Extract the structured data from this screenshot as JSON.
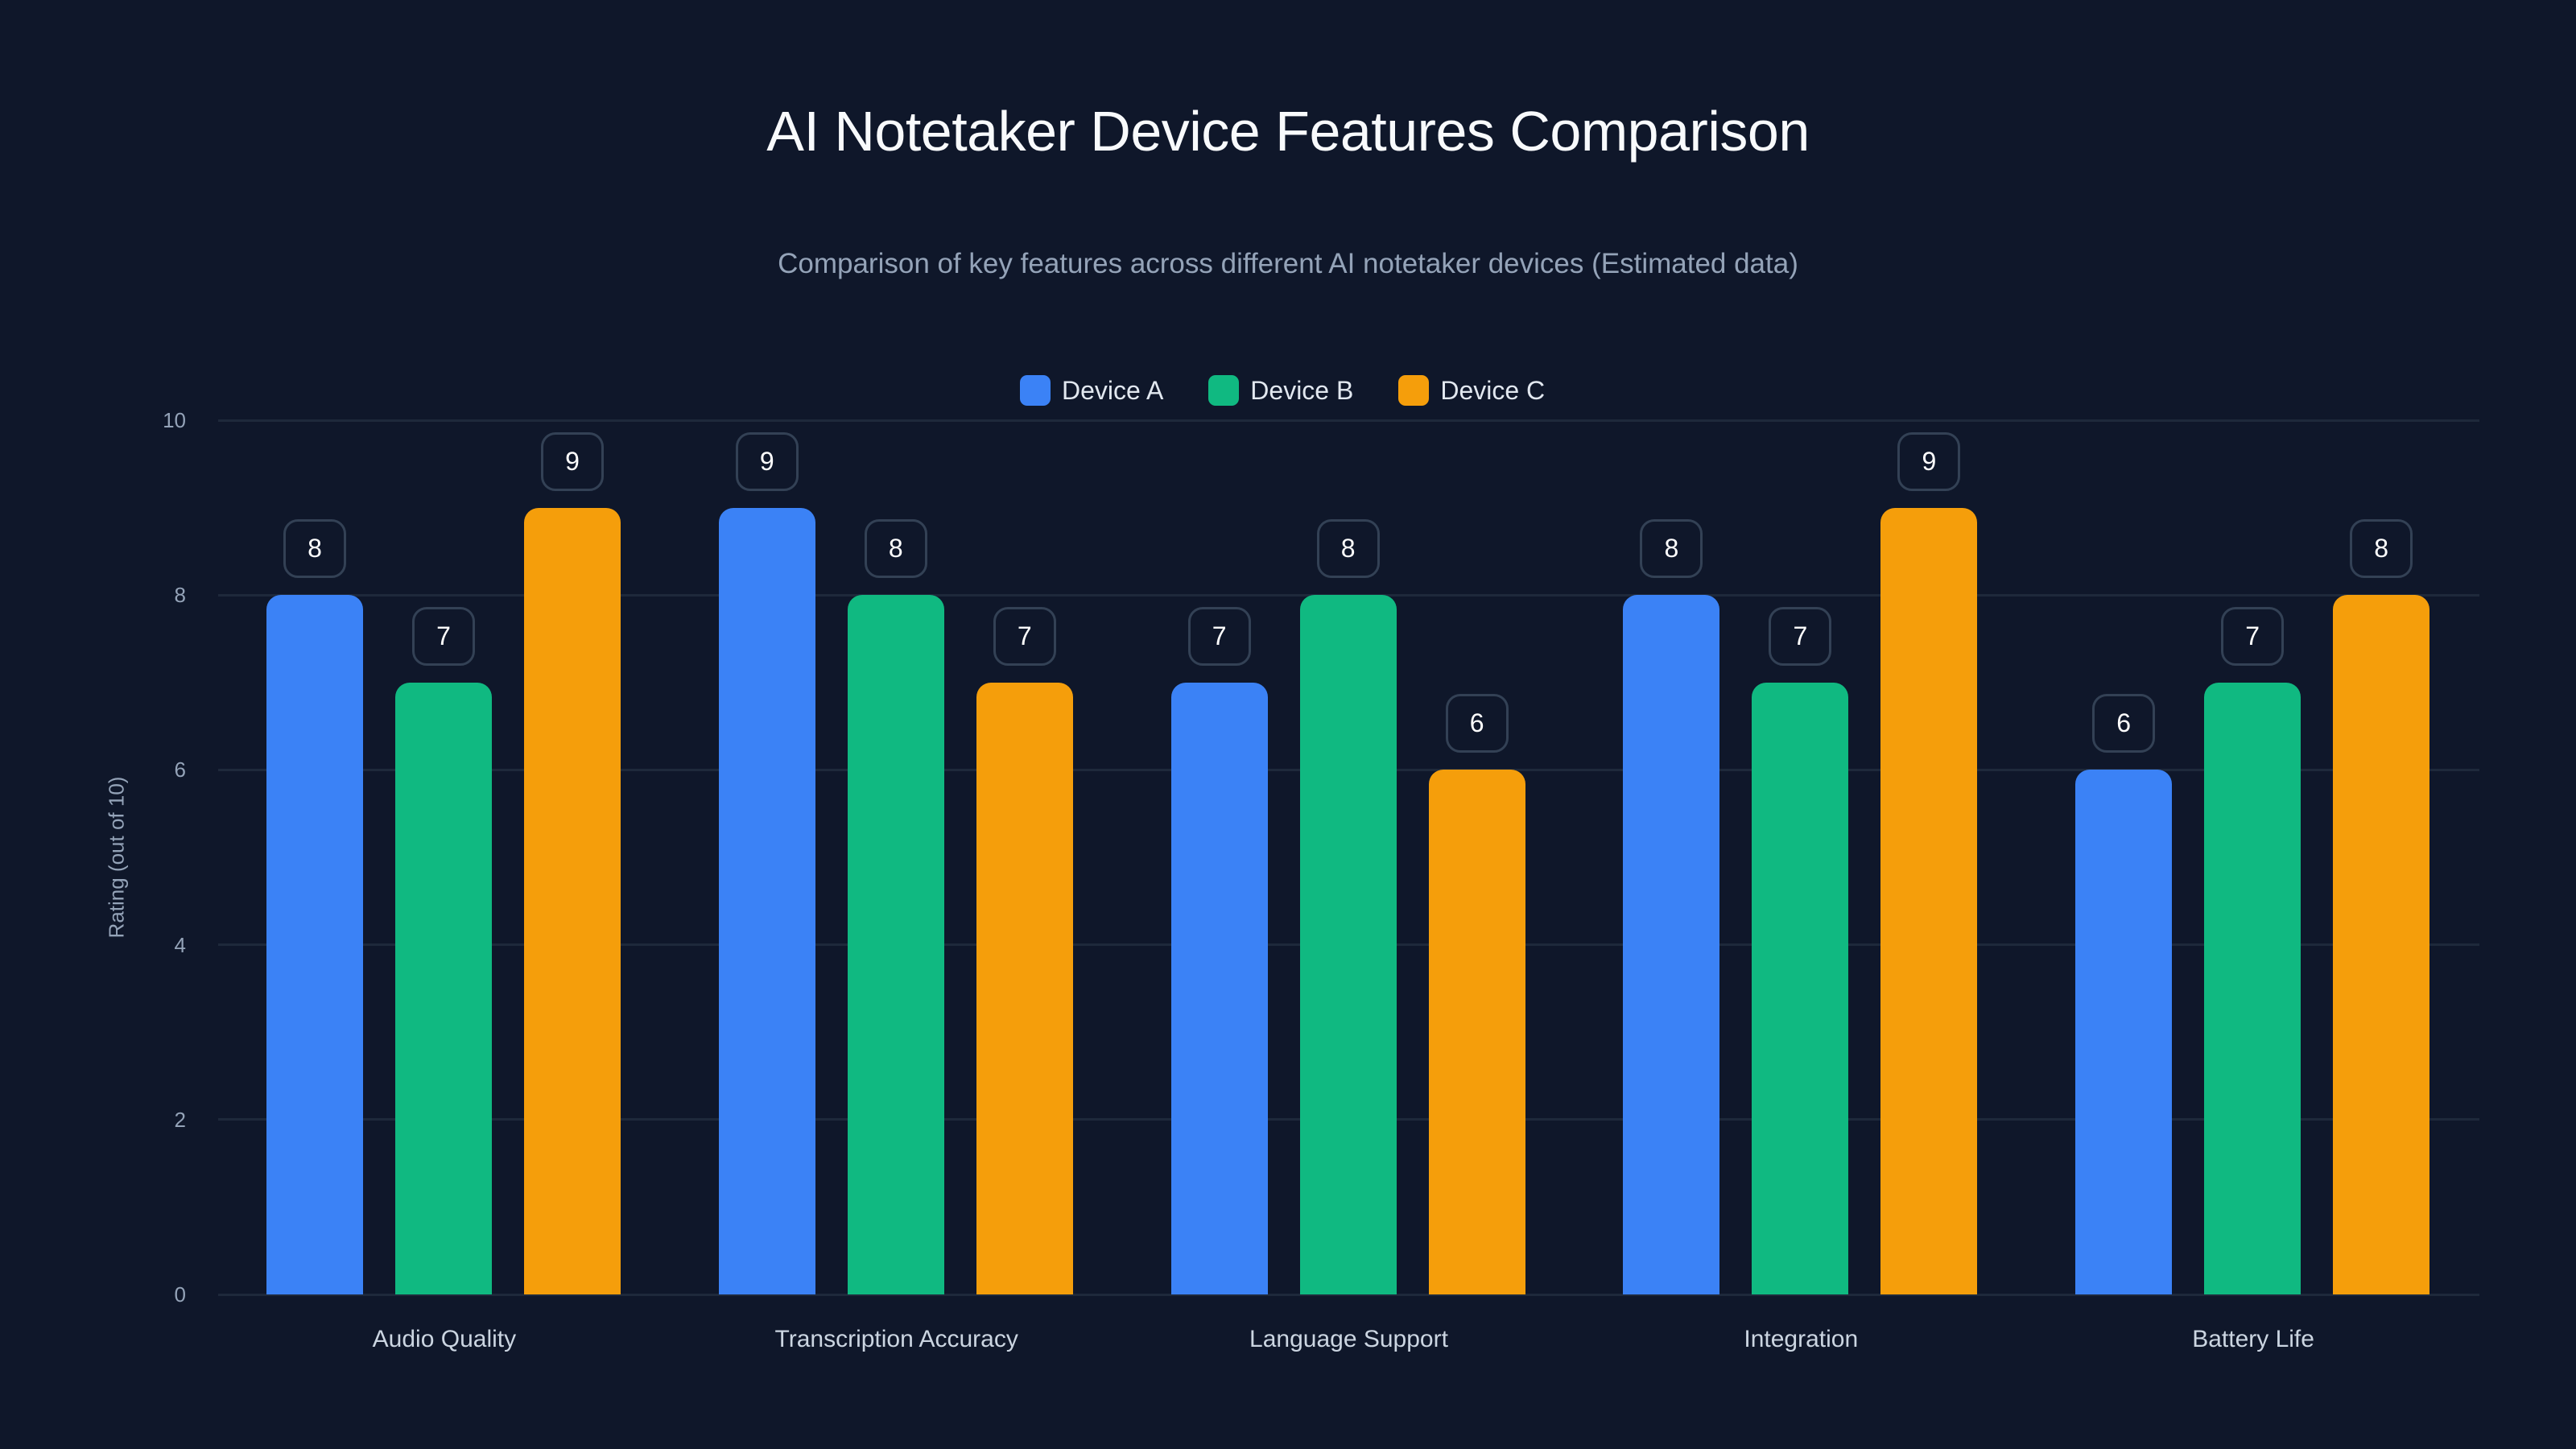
{
  "header": {
    "title": "AI Notetaker Device Features Comparison",
    "subtitle": "Comparison of key features across different AI notetaker devices (Estimated data)"
  },
  "legend": [
    {
      "label": "Device A",
      "color": "#3b82f6"
    },
    {
      "label": "Device B",
      "color": "#10b981"
    },
    {
      "label": "Device C",
      "color": "#f59e0b"
    }
  ],
  "axes": {
    "ylabel": "Rating (out of 10)",
    "yticks": [
      "0",
      "2",
      "4",
      "6",
      "8",
      "10"
    ]
  },
  "chart_data": {
    "type": "bar",
    "title": "AI Notetaker Device Features Comparison",
    "subtitle": "Comparison of key features across different AI notetaker devices (Estimated data)",
    "xlabel": "",
    "ylabel": "Rating (out of 10)",
    "ylim": [
      0,
      10
    ],
    "yticks": [
      0,
      2,
      4,
      6,
      8,
      10
    ],
    "grid": true,
    "legend_position": "top-center",
    "categories": [
      "Audio Quality",
      "Transcription Accuracy",
      "Language Support",
      "Integration",
      "Battery Life"
    ],
    "series": [
      {
        "name": "Device A",
        "color": "#3b82f6",
        "values": [
          8,
          9,
          7,
          8,
          6
        ]
      },
      {
        "name": "Device B",
        "color": "#10b981",
        "values": [
          7,
          8,
          8,
          7,
          7
        ]
      },
      {
        "name": "Device C",
        "color": "#f59e0b",
        "values": [
          9,
          7,
          6,
          9,
          8
        ]
      }
    ],
    "data_labels": true
  }
}
